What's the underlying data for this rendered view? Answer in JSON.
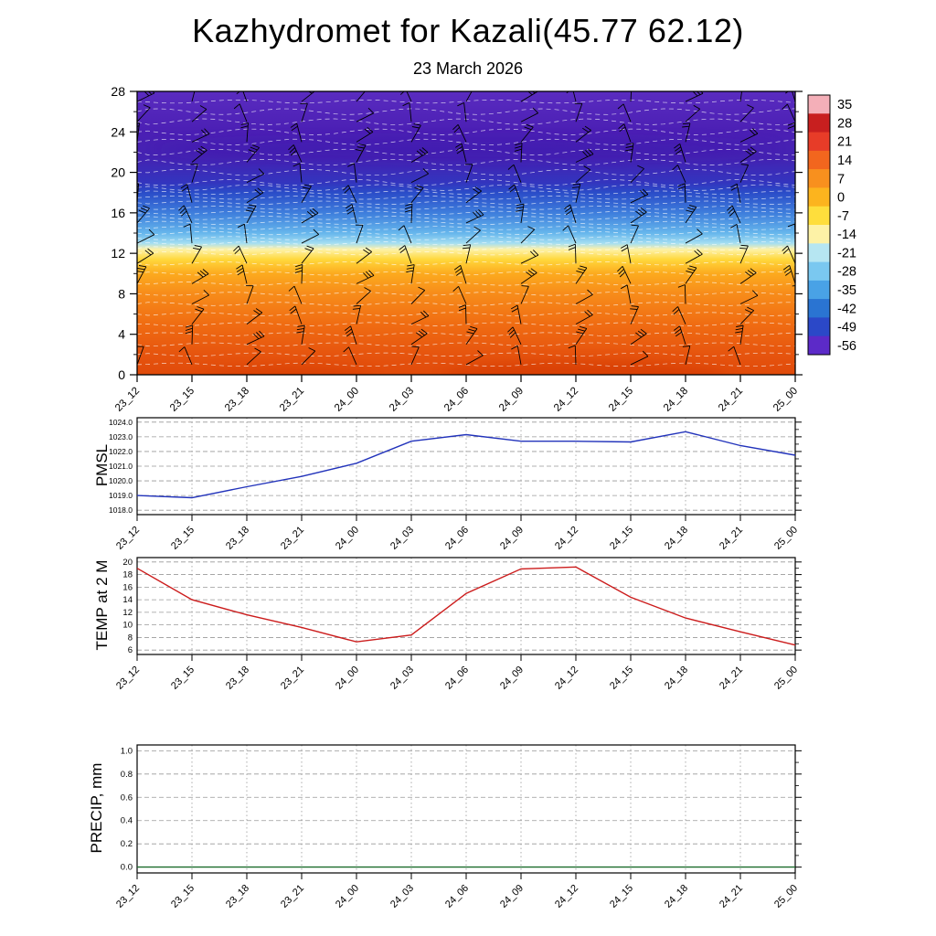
{
  "header": {
    "title": "Kazhydromet for Kazali(45.77 62.12)",
    "subtitle": "23 March 2026"
  },
  "time_labels": [
    "23_12",
    "23_15",
    "23_18",
    "23_21",
    "24_00",
    "24_03",
    "24_06",
    "24_09",
    "24_12",
    "24_15",
    "24_18",
    "24_21",
    "25_00"
  ],
  "chart_data": [
    {
      "type": "heatmap",
      "name": "upper-air-temperature-wind-cross-section",
      "x": [
        "23_12",
        "23_15",
        "23_18",
        "23_21",
        "24_00",
        "24_03",
        "24_06",
        "24_09",
        "24_12",
        "24_15",
        "24_18",
        "24_21",
        "25_00"
      ],
      "xlabel": "",
      "ylabel": "",
      "ylim": [
        0,
        28
      ],
      "yticks": [
        0,
        4,
        8,
        12,
        16,
        20,
        24,
        28
      ],
      "overlay": "wind barbs at each time and level (individual speeds not legible)",
      "contours": "white dashed temperature contours",
      "colorbar": {
        "tick_labels": [
          "35",
          "28",
          "21",
          "14",
          "7",
          "0",
          "-7",
          "-14",
          "-21",
          "-28",
          "-35",
          "-42",
          "-49",
          "-56"
        ],
        "colors": [
          "#f4afb8",
          "#c81f1f",
          "#e73c28",
          "#f2661e",
          "#f8901e",
          "#fcb41e",
          "#fede3c",
          "#fdf2a6",
          "#b6e6f2",
          "#7ac8f0",
          "#49a2e6",
          "#2a74d2",
          "#2b48c8",
          "#5c2ac8"
        ]
      },
      "profile_gradient": [
        {
          "level": 28,
          "color": "#5a2cc0"
        },
        {
          "level": 24,
          "color": "#4b1fb4"
        },
        {
          "level": 21.5,
          "color": "#4422b2"
        },
        {
          "level": 19,
          "color": "#3334be"
        },
        {
          "level": 18,
          "color": "#2a4cc8"
        },
        {
          "level": 16,
          "color": "#3e7edc"
        },
        {
          "level": 14,
          "color": "#66b6ec"
        },
        {
          "level": 13,
          "color": "#a4def2"
        },
        {
          "level": 12.4,
          "color": "#fdf2aa"
        },
        {
          "level": 11.4,
          "color": "#ffd83c"
        },
        {
          "level": 10,
          "color": "#fcaa1e"
        },
        {
          "level": 8,
          "color": "#f78c1a"
        },
        {
          "level": 5,
          "color": "#f06c12"
        },
        {
          "level": 2,
          "color": "#e6540e"
        },
        {
          "level": 0,
          "color": "#e04a0a"
        }
      ]
    },
    {
      "type": "line",
      "name": "pmsl-series",
      "ylabel": "PMSL",
      "xlabel": "",
      "color": "#2233bb",
      "x": [
        "23_12",
        "23_15",
        "23_18",
        "23_21",
        "24_00",
        "24_03",
        "24_06",
        "24_09",
        "24_12",
        "24_15",
        "24_18",
        "24_21",
        "25_00"
      ],
      "values": [
        1019.0,
        1018.85,
        1019.6,
        1020.3,
        1021.2,
        1022.7,
        1023.15,
        1022.7,
        1022.7,
        1022.65,
        1023.35,
        1022.4,
        1021.75
      ],
      "ylim": [
        1018.0,
        1024.0
      ],
      "ytick_labels": [
        "1018.0",
        "1019.0",
        "1020.0",
        "1021.0",
        "1022.0",
        "1023.0",
        "1024.0"
      ]
    },
    {
      "type": "line",
      "name": "temp-2m-series",
      "ylabel": "TEMP at 2 M",
      "xlabel": "",
      "color": "#cc1c1c",
      "x": [
        "23_12",
        "23_15",
        "23_18",
        "23_21",
        "24_00",
        "24_03",
        "24_06",
        "24_09",
        "24_12",
        "24_15",
        "24_18",
        "24_21",
        "25_00"
      ],
      "values": [
        19.0,
        14.0,
        11.6,
        9.6,
        7.3,
        8.4,
        15.0,
        18.9,
        19.2,
        14.4,
        11.1,
        8.9,
        6.8
      ],
      "ylim": [
        6,
        20
      ],
      "ytick_labels": [
        "6",
        "8",
        "10",
        "12",
        "14",
        "16",
        "18",
        "20"
      ]
    },
    {
      "type": "line",
      "name": "precip-series",
      "ylabel": "PRECIP, mm",
      "xlabel": "",
      "color": "#1a6b2a",
      "x": [
        "23_12",
        "23_15",
        "23_18",
        "23_21",
        "24_00",
        "24_03",
        "24_06",
        "24_09",
        "24_12",
        "24_15",
        "24_18",
        "24_21",
        "25_00"
      ],
      "values": [
        0.0,
        0.0,
        0.0,
        0.0,
        0.0,
        0.0,
        0.0,
        0.0,
        0.0,
        0.0,
        0.0,
        0.0,
        0.0
      ],
      "ylim": [
        0.0,
        1.0
      ],
      "ytick_labels": [
        "0.0",
        "0.2",
        "0.4",
        "0.6",
        "0.8",
        "1.0"
      ]
    }
  ]
}
